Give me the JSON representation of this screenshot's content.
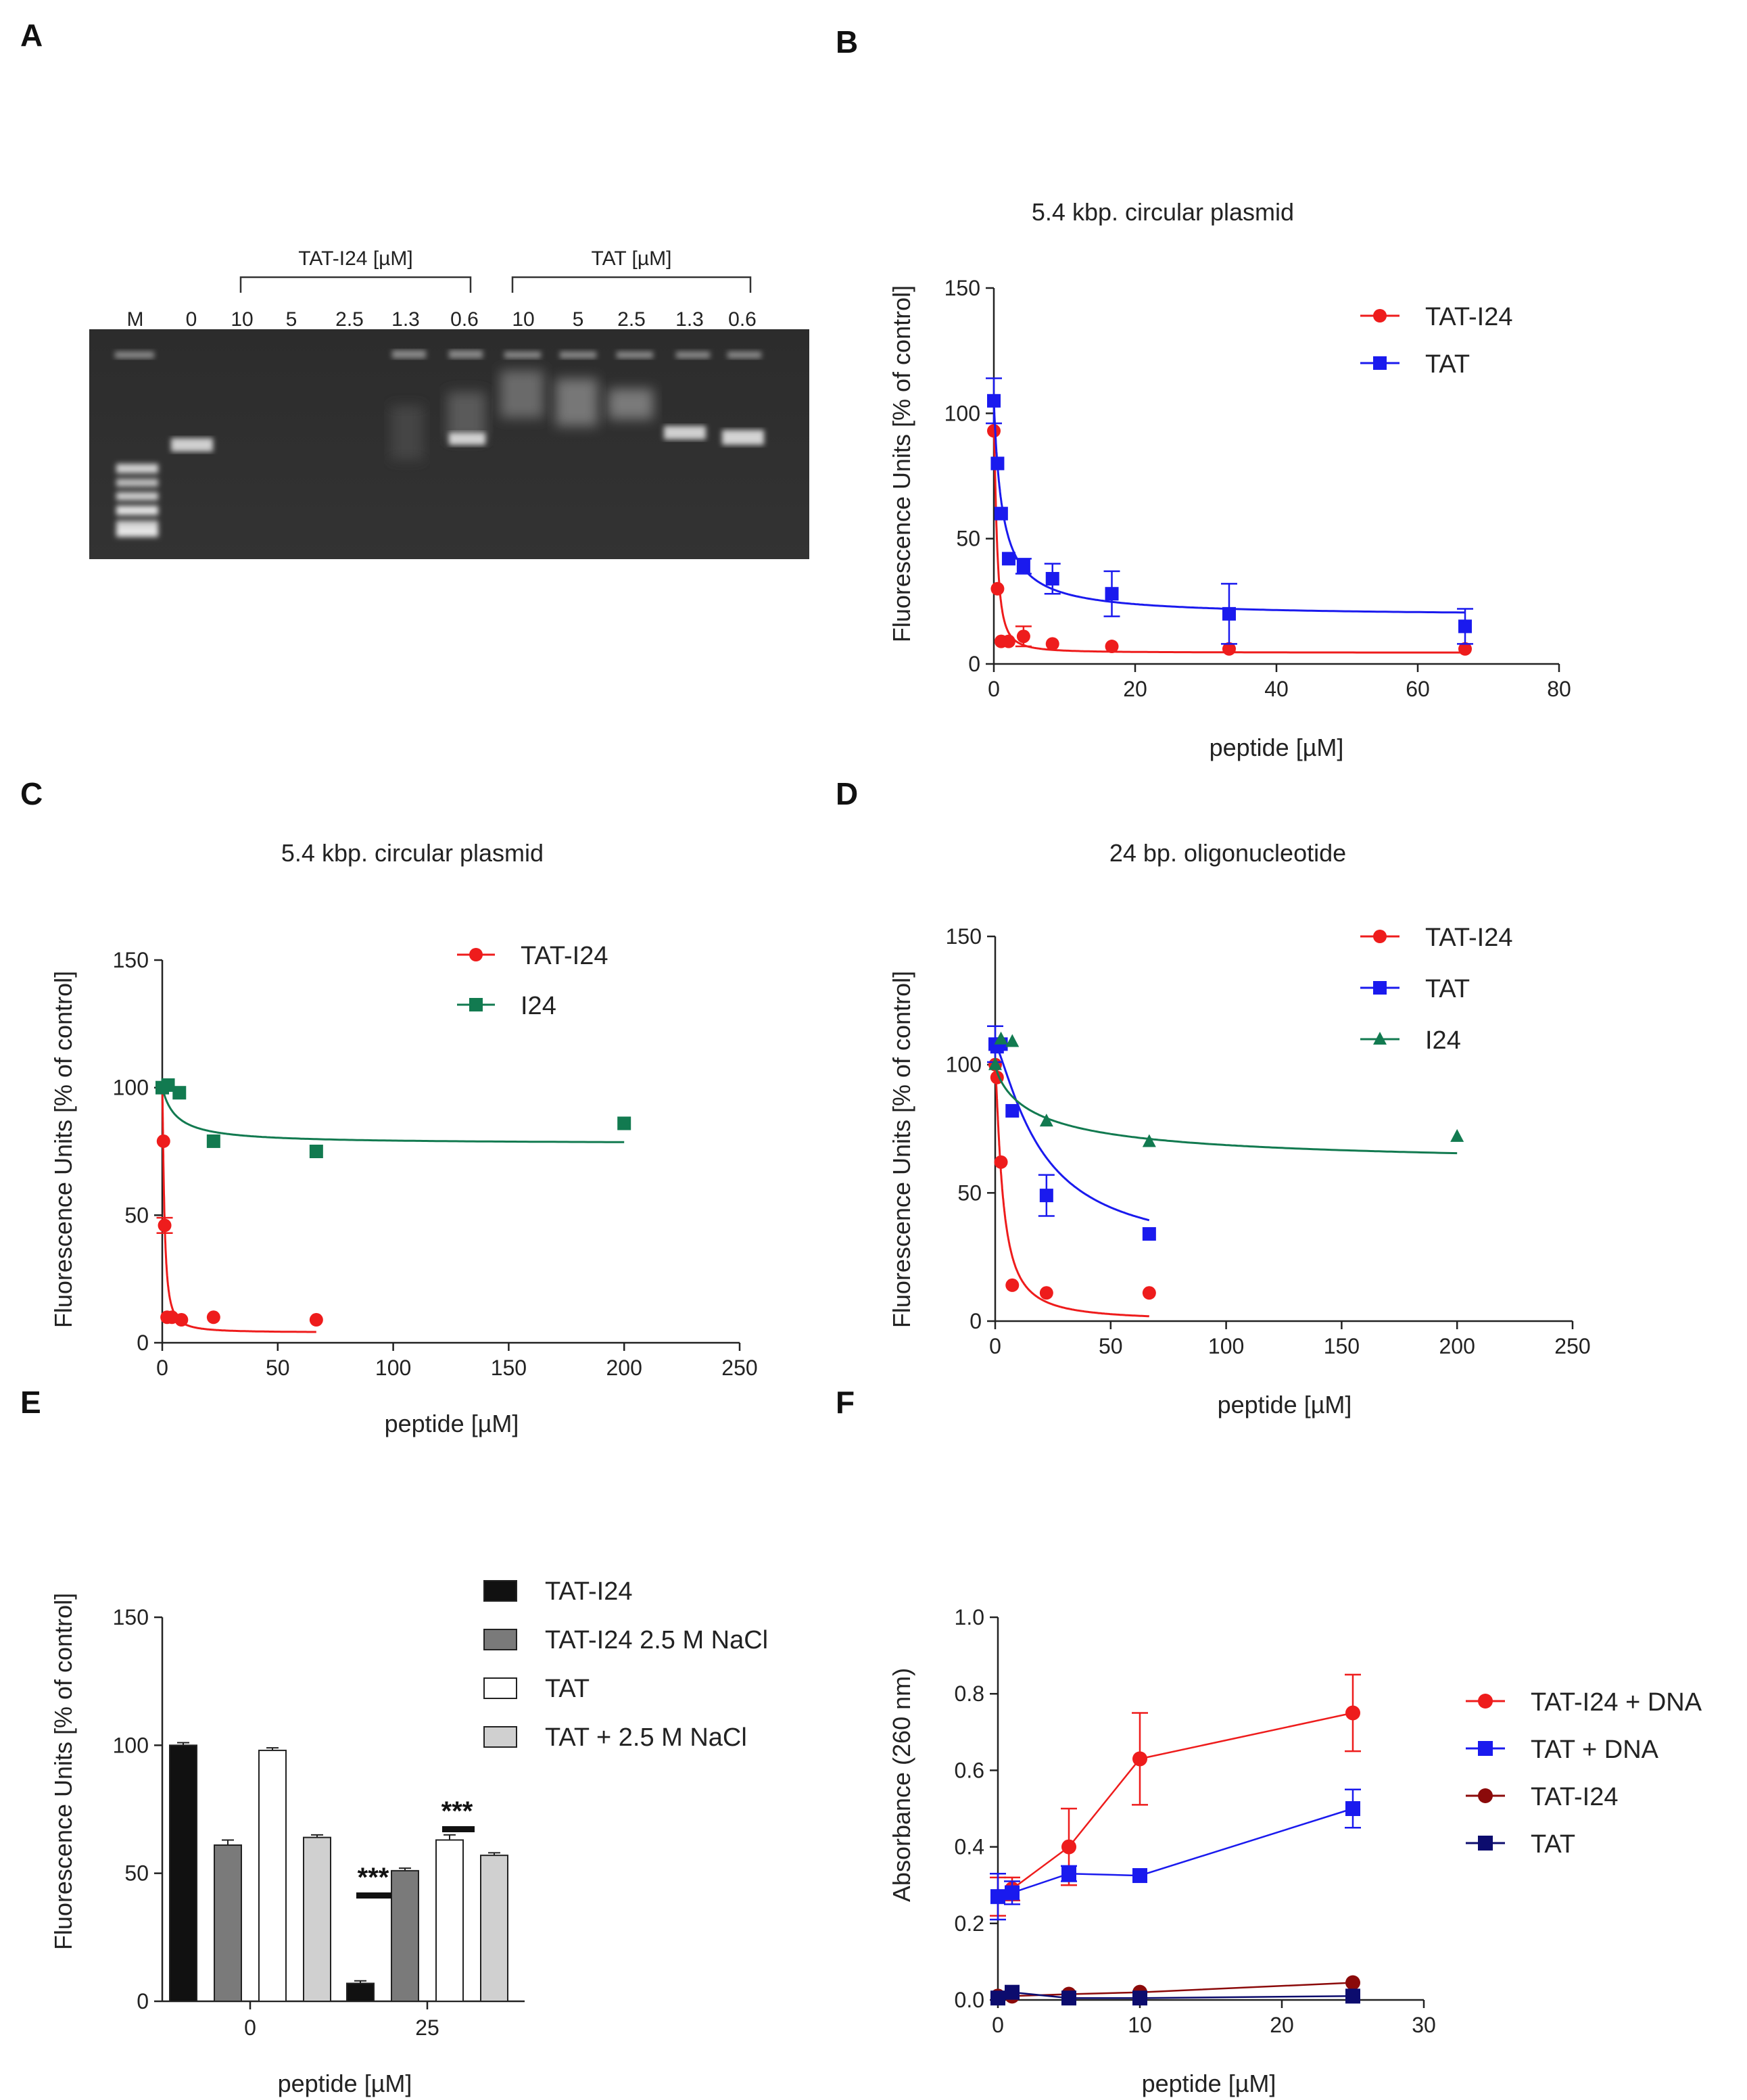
{
  "colors": {
    "red": "#ee1c1c",
    "blue": "#1a1aee",
    "green": "#127a50",
    "darkred": "#8b0a0a",
    "navy": "#0c0c6e",
    "black": "#111111",
    "gray_dark": "#7a7a7a",
    "gray_light": "#d0d0d0",
    "white": "#ffffff"
  },
  "panels": {
    "a": {
      "letter": "A",
      "group1_label": "TAT-I24 [µM]",
      "group2_label": "TAT [µM]",
      "lanes": [
        "M",
        "0",
        "10",
        "5",
        "2.5",
        "1.3",
        "0.6",
        "10",
        "5",
        "2.5",
        "1.3",
        "0.6"
      ]
    },
    "b": {
      "letter": "B"
    },
    "c": {
      "letter": "C"
    },
    "d": {
      "letter": "D"
    },
    "e": {
      "letter": "E",
      "significance": "***"
    },
    "f": {
      "letter": "F"
    }
  },
  "chart_data": [
    {
      "id": "B",
      "type": "scatter",
      "title": "5.4 kbp. circular plasmid",
      "xlabel": "peptide [µM]",
      "ylabel": "Fluorescence Units [% of control]",
      "xlim": [
        0,
        80
      ],
      "ylim": [
        0,
        150
      ],
      "xticks": [
        0,
        20,
        40,
        60,
        80
      ],
      "yticks": [
        0,
        50,
        100,
        150
      ],
      "legend_position": "top-right",
      "series": [
        {
          "name": "TAT-I24",
          "color": "red",
          "marker": "circle",
          "x": [
            0,
            0.52,
            1.04,
            2.1,
            4.2,
            8.3,
            16.7,
            33.3,
            66.7
          ],
          "y": [
            93,
            30,
            9,
            9,
            11,
            8,
            7,
            6,
            6
          ],
          "err": [
            0,
            0,
            0,
            0,
            4,
            0,
            0,
            0,
            0
          ],
          "fit": {
            "bottom": 4.5,
            "top": 93,
            "ic50": 0.45,
            "hill": 1.5
          }
        },
        {
          "name": "TAT",
          "color": "blue",
          "marker": "square",
          "x": [
            0,
            0.52,
            1.04,
            2.1,
            4.2,
            8.3,
            16.7,
            33.3,
            66.7
          ],
          "y": [
            105,
            80,
            60,
            42,
            39,
            34,
            28,
            20,
            15
          ],
          "err": [
            9,
            0,
            0,
            0,
            3,
            6,
            9,
            12,
            7
          ],
          "fit": {
            "bottom": 19,
            "top": 105,
            "ic50": 1.2,
            "hill": 1.0
          }
        }
      ]
    },
    {
      "id": "C",
      "type": "scatter",
      "title": "5.4 kbp. circular plasmid",
      "xlabel": "peptide [µM]",
      "ylabel": "Fluorescence Units [% of control]",
      "xlim": [
        0,
        250
      ],
      "ylim": [
        0,
        150
      ],
      "xticks": [
        0,
        50,
        100,
        150,
        200,
        250
      ],
      "yticks": [
        0,
        50,
        100,
        150
      ],
      "legend_position": "top-right",
      "series": [
        {
          "name": "TAT-I24",
          "color": "red",
          "marker": "circle",
          "x": [
            0,
            0.52,
            1.04,
            2.1,
            4.2,
            8.3,
            22.2,
            66.7
          ],
          "y": [
            100,
            79,
            46,
            10,
            10,
            9,
            10,
            9
          ],
          "err": [
            0,
            0,
            3,
            0,
            0,
            0,
            0,
            0
          ],
          "fit": {
            "bottom": 4,
            "top": 100,
            "ic50": 0.9,
            "hill": 1.4
          }
        },
        {
          "name": "I24",
          "color": "green",
          "marker": "square",
          "x": [
            0,
            2.5,
            7.4,
            22.2,
            66.7,
            200
          ],
          "y": [
            100,
            101,
            98,
            79,
            75,
            86
          ],
          "err": [
            0,
            0,
            0,
            0,
            0,
            0
          ],
          "fit": {
            "bottom": 78,
            "top": 100,
            "ic50": 6,
            "hill": 1.0
          }
        }
      ]
    },
    {
      "id": "D",
      "type": "scatter",
      "title": "24 bp. oligonucleotide",
      "xlabel": "peptide [µM]",
      "ylabel": "Fluorescence Units [% of control]",
      "xlim": [
        0,
        250
      ],
      "ylim": [
        0,
        150
      ],
      "xticks": [
        0,
        50,
        100,
        150,
        200,
        250
      ],
      "yticks": [
        0,
        50,
        100,
        150
      ],
      "legend_position": "top-right",
      "series": [
        {
          "name": "TAT-I24",
          "color": "red",
          "marker": "circle",
          "x": [
            0,
            0.82,
            2.5,
            7.4,
            22.2,
            66.7
          ],
          "y": [
            100,
            95,
            62,
            14,
            11,
            11
          ],
          "err": [
            0,
            0,
            0,
            0,
            0,
            0
          ],
          "fit": {
            "bottom": 0,
            "top": 100,
            "ic50": 3.2,
            "hill": 1.3
          }
        },
        {
          "name": "TAT",
          "color": "blue",
          "marker": "square",
          "x": [
            0,
            0.82,
            2.5,
            7.4,
            22.2,
            66.7
          ],
          "y": [
            108,
            107,
            108,
            82,
            49,
            34
          ],
          "err": [
            7,
            0,
            0,
            0,
            8,
            0
          ],
          "fit": {
            "bottom": 25,
            "top": 108,
            "ic50": 20,
            "hill": 1.3
          }
        },
        {
          "name": "I24",
          "color": "green",
          "marker": "triangle",
          "x": [
            0,
            2.5,
            7.4,
            22.2,
            66.7,
            200
          ],
          "y": [
            100,
            110,
            109,
            78,
            70,
            72
          ],
          "err": [
            0,
            0,
            0,
            0,
            0,
            0
          ],
          "fit": {
            "bottom": 60,
            "top": 100,
            "ic50": 20,
            "hill": 0.8
          }
        }
      ]
    },
    {
      "id": "E",
      "type": "bar",
      "title": "",
      "xlabel": "peptide [µM]",
      "ylabel": "Fluorescence Units [% of control]",
      "ylim": [
        0,
        150
      ],
      "yticks": [
        0,
        50,
        100,
        150
      ],
      "categories": [
        "0",
        "25"
      ],
      "legend_position": "top-right",
      "series": [
        {
          "name": "TAT-I24",
          "fill": "black",
          "values": [
            100,
            7
          ],
          "err": [
            1,
            1
          ]
        },
        {
          "name": "TAT-I24 2.5 M NaCl",
          "fill": "gray_dark",
          "values": [
            61,
            51
          ],
          "err": [
            2,
            1
          ]
        },
        {
          "name": "TAT",
          "fill": "white",
          "values": [
            98,
            63
          ],
          "err": [
            1,
            2
          ]
        },
        {
          "name": "TAT + 2.5 M NaCl",
          "fill": "gray_light",
          "values": [
            64,
            57
          ],
          "err": [
            1,
            1
          ]
        }
      ]
    },
    {
      "id": "F",
      "type": "line",
      "title": "",
      "xlabel": "peptide [µM]",
      "ylabel": "Absorbance (260 nm)",
      "xlim": [
        0,
        30
      ],
      "ylim": [
        0,
        1.0
      ],
      "xticks": [
        0,
        10,
        20,
        30
      ],
      "yticks": [
        0.0,
        0.2,
        0.4,
        0.6,
        0.8,
        1.0
      ],
      "ytick_labels": [
        "0.0",
        "0.2",
        "0.4",
        "0.6",
        "0.8",
        "1.0"
      ],
      "legend_position": "right",
      "series": [
        {
          "name": "TAT-I24 + DNA",
          "color": "red",
          "marker": "circle",
          "x": [
            0,
            1,
            5,
            10,
            25
          ],
          "y": [
            0.27,
            0.29,
            0.4,
            0.63,
            0.75
          ],
          "err": [
            0.05,
            0.03,
            0.1,
            0.12,
            0.1
          ]
        },
        {
          "name": "TAT + DNA",
          "color": "blue",
          "marker": "square",
          "x": [
            0,
            1,
            5,
            10,
            25
          ],
          "y": [
            0.27,
            0.28,
            0.33,
            0.325,
            0.5
          ],
          "err": [
            0.06,
            0.03,
            0.02,
            0,
            0.05
          ]
        },
        {
          "name": "TAT-I24",
          "color": "darkred",
          "marker": "circle",
          "x": [
            0,
            1,
            5,
            10,
            25
          ],
          "y": [
            0.01,
            0.01,
            0.015,
            0.02,
            0.045
          ],
          "err": [
            0,
            0,
            0,
            0,
            0
          ]
        },
        {
          "name": "TAT",
          "color": "navy",
          "marker": "square",
          "x": [
            0,
            1,
            5,
            10,
            25
          ],
          "y": [
            0.005,
            0.02,
            0.005,
            0.005,
            0.01
          ],
          "err": [
            0,
            0,
            0,
            0,
            0
          ]
        }
      ]
    }
  ]
}
